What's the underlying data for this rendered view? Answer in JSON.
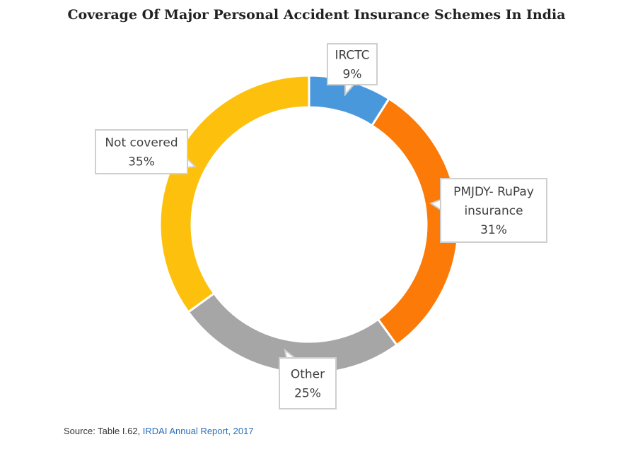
{
  "chart_data": {
    "type": "pie",
    "title": "Coverage Of Major Personal Accident Insurance Schemes In India",
    "slices": [
      {
        "label": "IRCTC",
        "label_lines": [
          "IRCTC"
        ],
        "value": 9,
        "value_label": "9%",
        "color": "#4a98dc"
      },
      {
        "label": "PMJDY- RuPay insurance",
        "label_lines": [
          "PMJDY- RuPay",
          "insurance"
        ],
        "value": 31,
        "value_label": "31%",
        "color": "#fb7a08"
      },
      {
        "label": "Other",
        "label_lines": [
          "Other"
        ],
        "value": 25,
        "value_label": "25%",
        "color": "#a6a6a6"
      },
      {
        "label": "Not covered",
        "label_lines": [
          "Not covered"
        ],
        "value": 35,
        "value_label": "35%",
        "color": "#fdc10d"
      }
    ],
    "legend": "none"
  },
  "source": {
    "prefix": "Source: Table I.62, ",
    "link_text": "IRDAI Annual Report, 2017"
  }
}
